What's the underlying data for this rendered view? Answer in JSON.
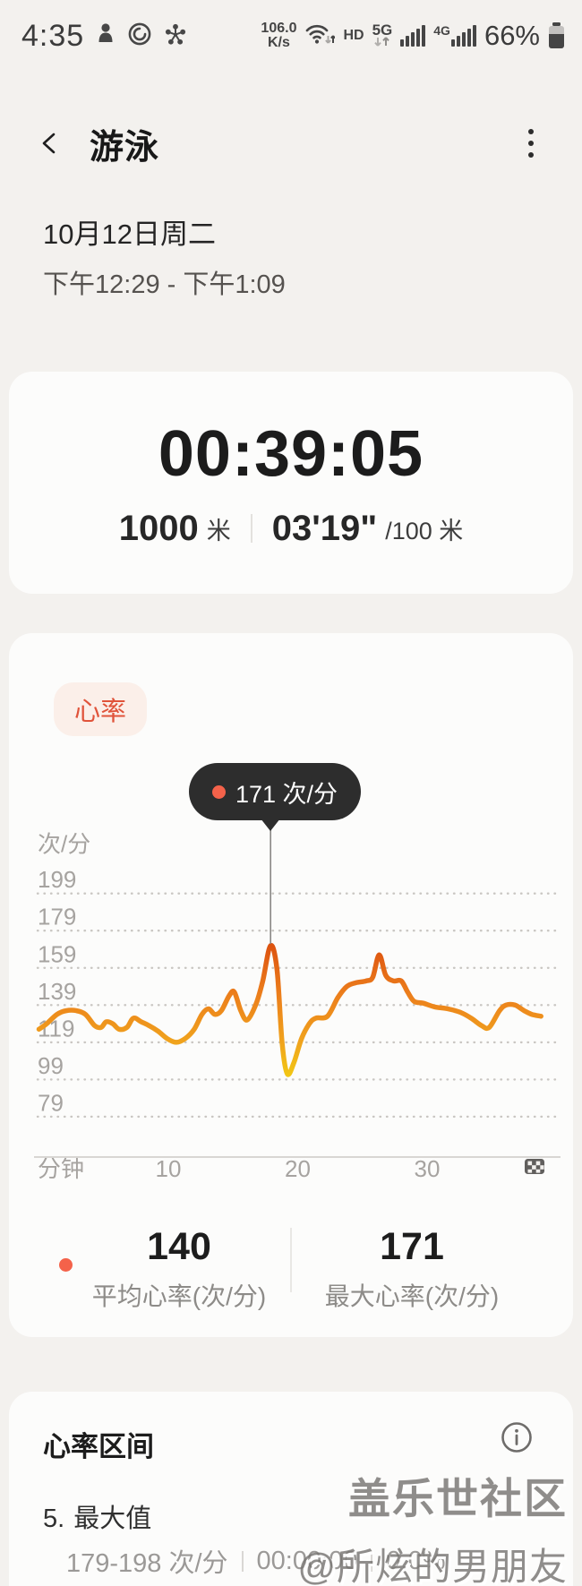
{
  "status_bar": {
    "time": "4:35",
    "net_speed_value": "106.0",
    "net_speed_unit": "K/s",
    "hd_label": "HD",
    "network_5g_label": "5G",
    "network_4g_label": "4G",
    "battery_percent": "66%"
  },
  "header": {
    "title": "游泳"
  },
  "session": {
    "date": "10月12日周二",
    "time_range": "下午12:29 - 下午1:09"
  },
  "summary": {
    "duration": "00:39:05",
    "distance_value": "1000",
    "distance_unit": "米",
    "pace_value": "03'19\"",
    "pace_unit": "/100 米"
  },
  "heart_rate": {
    "badge_label": "心率",
    "tooltip_label": "171 次/分",
    "avg_value": "140",
    "avg_label": "平均心率(次/分)",
    "max_value": "171",
    "max_label": "最大心率(次/分)"
  },
  "chart_data": {
    "type": "line",
    "title": "心率",
    "ylabel": "次/分",
    "xlabel": "分钟",
    "y_ticks": [
      199,
      179,
      159,
      139,
      119,
      99,
      79
    ],
    "x_ticks": [
      10,
      20,
      30
    ],
    "x_range_minutes": [
      0,
      39
    ],
    "ylim": [
      79,
      199
    ],
    "grid": "dotted-horizontal",
    "legend_position": "none",
    "marker": {
      "minute": 17.9,
      "value": 171,
      "label": "171 次/分"
    },
    "avg_bpm": 140,
    "max_bpm": 171,
    "series": [
      {
        "name": "心率",
        "unit": "次/分",
        "points_min_bpm": [
          [
            0,
            126
          ],
          [
            0.6,
            129
          ],
          [
            1.4,
            134
          ],
          [
            2.1,
            136
          ],
          [
            2.9,
            136
          ],
          [
            3.6,
            134
          ],
          [
            4.3,
            128
          ],
          [
            4.8,
            127
          ],
          [
            5.2,
            130
          ],
          [
            5.7,
            129
          ],
          [
            6.2,
            126
          ],
          [
            6.8,
            127
          ],
          [
            7.3,
            132
          ],
          [
            7.9,
            130
          ],
          [
            8.5,
            128
          ],
          [
            9.2,
            125
          ],
          [
            9.9,
            121
          ],
          [
            10.6,
            119
          ],
          [
            11.3,
            121
          ],
          [
            12,
            126
          ],
          [
            12.6,
            134
          ],
          [
            13.1,
            137
          ],
          [
            13.6,
            134
          ],
          [
            14.1,
            136
          ],
          [
            14.7,
            144
          ],
          [
            15.1,
            146
          ],
          [
            15.6,
            136
          ],
          [
            16.1,
            131
          ],
          [
            16.8,
            140
          ],
          [
            17.3,
            152
          ],
          [
            17.9,
            171
          ],
          [
            18.4,
            158
          ],
          [
            18.8,
            118
          ],
          [
            19.2,
            102
          ],
          [
            19.7,
            108
          ],
          [
            20.3,
            121
          ],
          [
            20.9,
            129
          ],
          [
            21.4,
            132
          ],
          [
            22.3,
            133
          ],
          [
            23.1,
            143
          ],
          [
            23.8,
            149
          ],
          [
            24.5,
            151
          ],
          [
            25.3,
            152
          ],
          [
            25.8,
            154
          ],
          [
            26.3,
            166
          ],
          [
            26.8,
            155
          ],
          [
            27.4,
            152
          ],
          [
            28,
            152
          ],
          [
            28.5,
            146
          ],
          [
            29,
            141
          ],
          [
            29.7,
            140
          ],
          [
            30.6,
            138
          ],
          [
            31.6,
            137
          ],
          [
            32.6,
            135
          ],
          [
            33.4,
            132
          ],
          [
            34.2,
            128
          ],
          [
            34.8,
            127
          ],
          [
            35.6,
            136
          ],
          [
            36.1,
            139
          ],
          [
            36.8,
            139
          ],
          [
            37.5,
            136
          ],
          [
            38.1,
            134
          ],
          [
            38.8,
            133
          ]
        ]
      }
    ]
  },
  "zones": {
    "title": "心率区间",
    "items": [
      {
        "index": "5.",
        "name": "最大值",
        "range": "179-198 次/分",
        "duration": "00:00:00",
        "percent": "0.0%"
      }
    ]
  },
  "watermark": {
    "line1": "盖乐世社区",
    "line2": "@所炫的男朋友"
  },
  "colors": {
    "accent_red": "#f4624a",
    "badge_bg": "#fbefe9",
    "badge_text": "#e0533a",
    "tooltip_bg": "#2d2d2d",
    "line_high": "#cf3c08",
    "line_mid": "#ec7f1c",
    "line_low": "#f2cd12",
    "page_bg": "#f3f1ee",
    "card_bg": "#fcfcfb"
  }
}
